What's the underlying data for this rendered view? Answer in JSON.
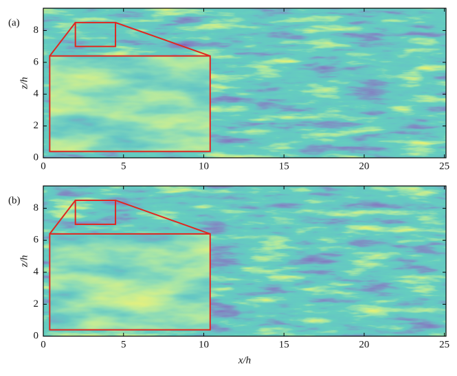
{
  "chart_data": [
    {
      "type": "image",
      "label": "(a)",
      "ylabel": "z/h",
      "xlim": [
        0,
        25.1
      ],
      "ylim": [
        0,
        9.4
      ],
      "xticks": [
        0,
        5,
        10,
        15,
        20,
        25
      ],
      "yticks": [
        0,
        2,
        4,
        6,
        8
      ],
      "zoom": {
        "xlim": [
          2,
          4.5
        ],
        "ylim": [
          7,
          8.5
        ]
      },
      "inset": {
        "xlim": [
          0.4,
          10.4
        ],
        "ylim": [
          0.4,
          6.4
        ]
      },
      "inset_color": "#e0261f"
    },
    {
      "type": "image",
      "label": "(b)",
      "ylabel": "z/h",
      "xlabel": "x/h",
      "xlim": [
        0,
        25.1
      ],
      "ylim": [
        0,
        9.4
      ],
      "xticks": [
        0,
        5,
        10,
        15,
        20,
        25
      ],
      "yticks": [
        0,
        2,
        4,
        6,
        8
      ],
      "zoom": {
        "xlim": [
          2,
          4.5
        ],
        "ylim": [
          7,
          8.5
        ]
      },
      "inset": {
        "xlim": [
          0.4,
          10.4
        ],
        "ylim": [
          0.4,
          6.4
        ]
      },
      "inset_color": "#e0261f"
    }
  ]
}
